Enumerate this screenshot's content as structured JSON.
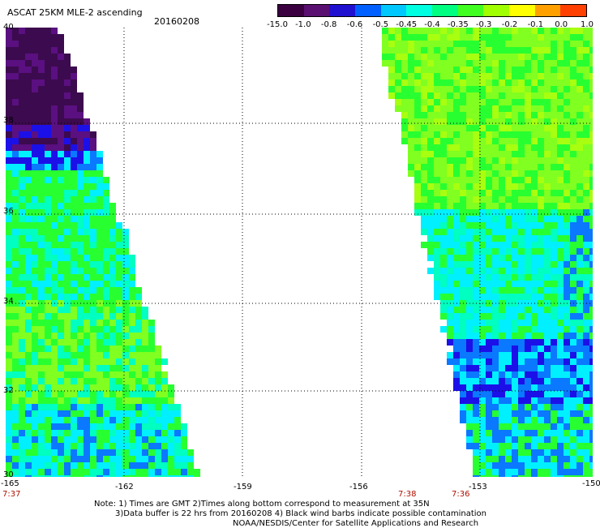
{
  "header": {
    "title": "ASCAT 25KM MLE-2 ascending",
    "date": "20160208"
  },
  "colorbar": {
    "colors": [
      "#3a0040",
      "#5a1070",
      "#2010d0",
      "#0060ff",
      "#00c8ff",
      "#00ffe0",
      "#00ff80",
      "#40ff20",
      "#a0ff00",
      "#ffff00",
      "#ffa000",
      "#ff4000"
    ],
    "labels": [
      "-15.0",
      "-1.0",
      "-0.8",
      "-0.6",
      "-0.5",
      "-0.45",
      "-0.4",
      "-0.35",
      "-0.3",
      "-0.2",
      "-0.1",
      "0.0",
      "1.0"
    ]
  },
  "map": {
    "lat_labels": [
      "40",
      "38",
      "36",
      "34",
      "32",
      "30"
    ],
    "lon_labels": [
      "-165",
      "-162",
      "-159",
      "-156",
      "-153",
      "-150"
    ],
    "time_labels": [
      "7:37",
      "7:38",
      "7:36"
    ],
    "palette": {
      "dark": "#3c0a4e",
      "purple": "#5a1080",
      "blue": "#1c10e8",
      "lightblue": "#0a78ff",
      "cyan": "#00f0ff",
      "aqua": "#00ffc0",
      "green": "#28ff30",
      "lime": "#80ff20",
      "yellowgreen": "#a8ff10"
    }
  },
  "notes": {
    "line1": "Note: 1) Times are GMT 2)Times along bottom correspond to measurement at 35N",
    "line2": "3)Data buffer is 22 hrs from 20160208 4) Black wind barbs indicate possible contamination",
    "line3": "NOAA/NESDIS/Center for Satellite Applications and Research"
  }
}
